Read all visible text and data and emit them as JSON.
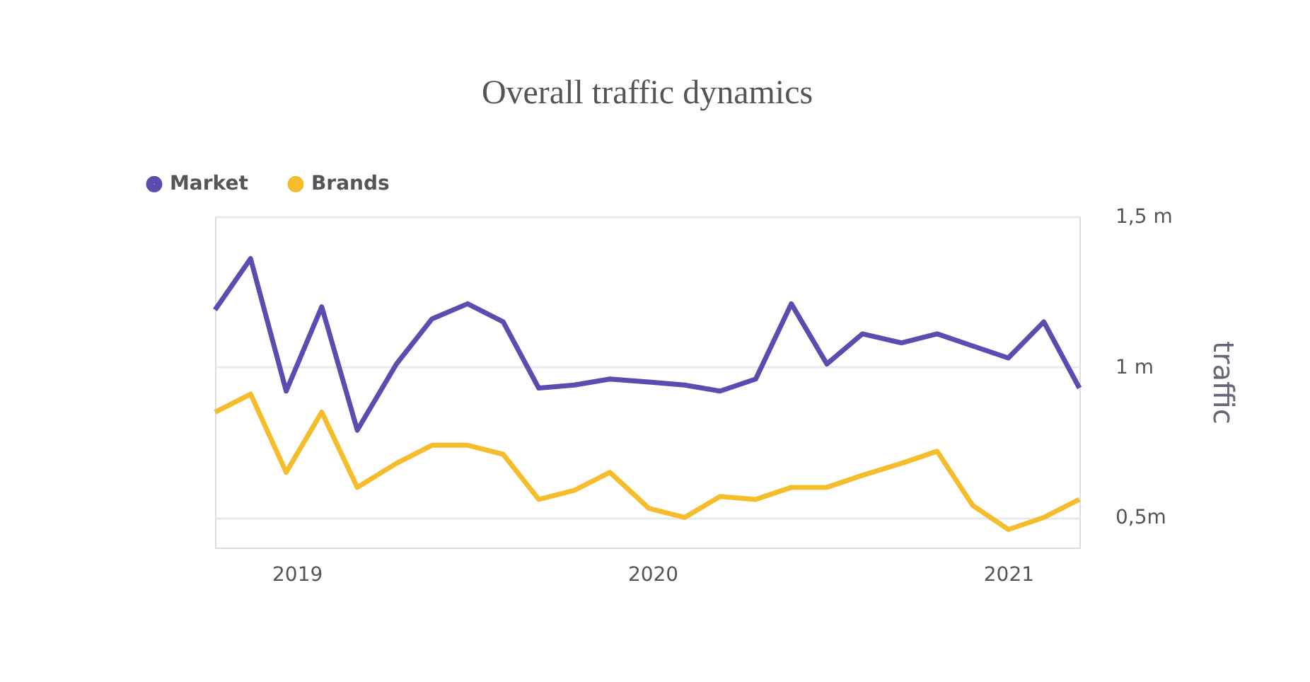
{
  "chart_data": {
    "type": "line",
    "title": "Overall traffic dynamics",
    "ylabel": "traffic",
    "x": [
      2018.77,
      2018.87,
      2018.97,
      2019.07,
      2019.17,
      2019.28,
      2019.38,
      2019.48,
      2019.58,
      2019.68,
      2019.78,
      2019.88,
      2019.99,
      2020.09,
      2020.19,
      2020.29,
      2020.39,
      2020.49,
      2020.59,
      2020.7,
      2020.8,
      2020.9,
      2021.0,
      2021.1,
      2021.2
    ],
    "series": [
      {
        "name": "Market",
        "color": "#5b4db0",
        "values": [
          1.19,
          1.36,
          0.92,
          1.2,
          0.79,
          1.01,
          1.16,
          1.21,
          1.15,
          0.93,
          0.94,
          0.96,
          0.95,
          0.94,
          0.92,
          0.96,
          1.21,
          1.01,
          1.11,
          1.08,
          1.11,
          1.07,
          1.03,
          1.15,
          0.93
        ]
      },
      {
        "name": "Brands",
        "color": "#f5bc2c",
        "values": [
          0.85,
          0.91,
          0.65,
          0.85,
          0.6,
          0.68,
          0.74,
          0.74,
          0.71,
          0.56,
          0.59,
          0.65,
          0.53,
          0.5,
          0.57,
          0.56,
          0.6,
          0.6,
          0.64,
          0.68,
          0.72,
          0.54,
          0.46,
          0.5,
          0.56
        ]
      }
    ],
    "xlim": [
      2018.77,
      2021.2
    ],
    "xticks": [
      2019,
      2020,
      2021
    ],
    "ylim": [
      0.4,
      1.5
    ],
    "yticks": [
      {
        "value": 1.5,
        "label": "1,5 m"
      },
      {
        "value": 1.0,
        "label": "1 m"
      },
      {
        "value": 0.5,
        "label": "0,5m"
      }
    ],
    "grid": "y",
    "legend": "top left",
    "marker": "none",
    "line_style": "solid"
  }
}
